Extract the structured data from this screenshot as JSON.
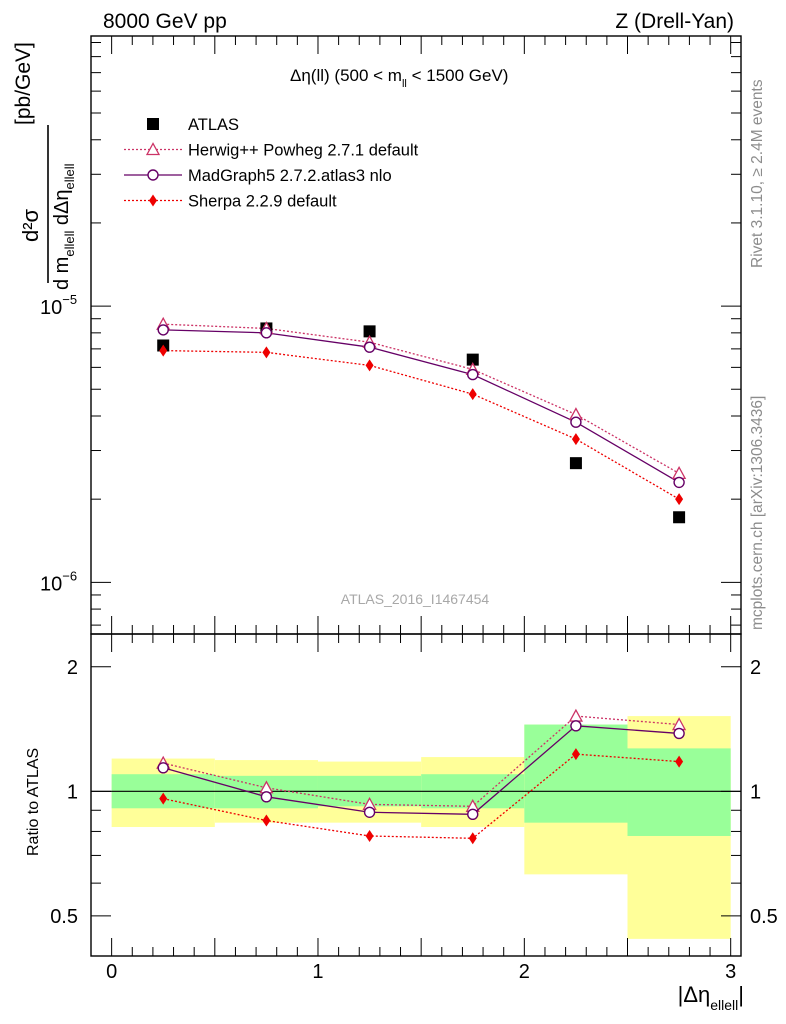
{
  "header": {
    "left": "8000 GeV pp",
    "right": "Z (Drell-Yan)"
  },
  "side_text": {
    "rivet": "Rivet 3.1.10, ≥ 2.4M events",
    "source": "mcplots.cern.ch [arXiv:1306.3436]"
  },
  "watermark": "ATLAS_2016_I1467454",
  "colors": {
    "atlas": "#000000",
    "herwig": "#cc3366",
    "madgraph": "#660066",
    "sherpa": "#ee0000",
    "band_inner": "#99ff99",
    "band_outer": "#ffff99"
  },
  "chart_data": [
    {
      "type": "scatter",
      "title_parts": {
        "main": "Δη(ll) (500 < m",
        "sub": "ll",
        "tail": " < 1500 GeV)"
      },
      "ylabel_parts": {
        "num": "d²σ",
        "den_a": "d m",
        "den_a_sub": "ellell",
        "den_b": " dΔη",
        "den_b_sub": "ellell",
        "unit": "[pb/GeV]"
      },
      "yscale": "log",
      "ylim": [
        6.5e-07,
        9.5e-05
      ],
      "xlim": [
        -0.1,
        3.05
      ],
      "ytick_labels": [
        {
          "value": 1e-05,
          "base": "10",
          "exp": "−5"
        },
        {
          "value": 1e-06,
          "base": "10",
          "exp": "−6"
        }
      ],
      "legend_position": "top-left",
      "x": [
        0.25,
        0.75,
        1.25,
        1.75,
        2.25,
        2.75
      ],
      "series": [
        {
          "name": "ATLAS",
          "marker": "square",
          "values": [
            7.2e-06,
            8.3e-06,
            8.1e-06,
            6.4e-06,
            2.7e-06,
            1.72e-06
          ]
        },
        {
          "name": "Herwig++ Powheg 2.7.1 default",
          "marker": "triangle-open",
          "line": "dotted",
          "values": [
            8.6e-06,
            8.3e-06,
            7.4e-06,
            5.9e-06,
            4.05e-06,
            2.48e-06
          ]
        },
        {
          "name": "MadGraph5 2.7.2.atlas3 nlo",
          "marker": "circle-open",
          "line": "solid",
          "values": [
            8.2e-06,
            8e-06,
            7.1e-06,
            5.65e-06,
            3.8e-06,
            2.3e-06
          ]
        },
        {
          "name": "Sherpa 2.2.9 default",
          "marker": "diamond",
          "line": "dotted",
          "values": [
            6.9e-06,
            6.8e-06,
            6.1e-06,
            4.8e-06,
            3.3e-06,
            2e-06
          ]
        }
      ]
    },
    {
      "type": "line",
      "ylabel": "Ratio to ATLAS",
      "xlabel_parts": {
        "main": "|Δη",
        "sub": "ellell",
        "tail": "|"
      },
      "xlim": [
        -0.1,
        3.05
      ],
      "ylim": [
        0.4,
        2.4
      ],
      "yscale": "log",
      "xticks": [
        0,
        1,
        2,
        3
      ],
      "xtick_labels": [
        "0",
        "1",
        "2",
        "3"
      ],
      "yticks": [
        0.5,
        1,
        2
      ],
      "ytick_labels": [
        "0.5",
        "1",
        "2"
      ],
      "x": [
        0.25,
        0.75,
        1.25,
        1.75,
        2.25,
        2.75
      ],
      "bins": [
        [
          0,
          0.5
        ],
        [
          0.5,
          1.0
        ],
        [
          1.0,
          1.5
        ],
        [
          1.5,
          2.0
        ],
        [
          2.0,
          2.5
        ],
        [
          2.5,
          3.0
        ]
      ],
      "band_outer": [
        [
          0.82,
          1.2
        ],
        [
          0.84,
          1.19
        ],
        [
          0.84,
          1.18
        ],
        [
          0.82,
          1.21
        ],
        [
          0.63,
          1.45
        ],
        [
          0.44,
          1.52
        ]
      ],
      "band_inner": [
        [
          0.91,
          1.1
        ],
        [
          0.91,
          1.09
        ],
        [
          0.92,
          1.09
        ],
        [
          0.91,
          1.1
        ],
        [
          0.84,
          1.45
        ],
        [
          0.78,
          1.27
        ]
      ],
      "series": [
        {
          "name": "Herwig++ Powheg 2.7.1 default",
          "values": [
            1.17,
            1.02,
            0.93,
            0.92,
            1.52,
            1.45
          ]
        },
        {
          "name": "MadGraph5 2.7.2.atlas3 nlo",
          "values": [
            1.14,
            0.97,
            0.89,
            0.88,
            1.44,
            1.38
          ]
        },
        {
          "name": "Sherpa 2.2.9 default",
          "values": [
            0.96,
            0.85,
            0.78,
            0.77,
            1.23,
            1.18
          ]
        }
      ]
    }
  ]
}
